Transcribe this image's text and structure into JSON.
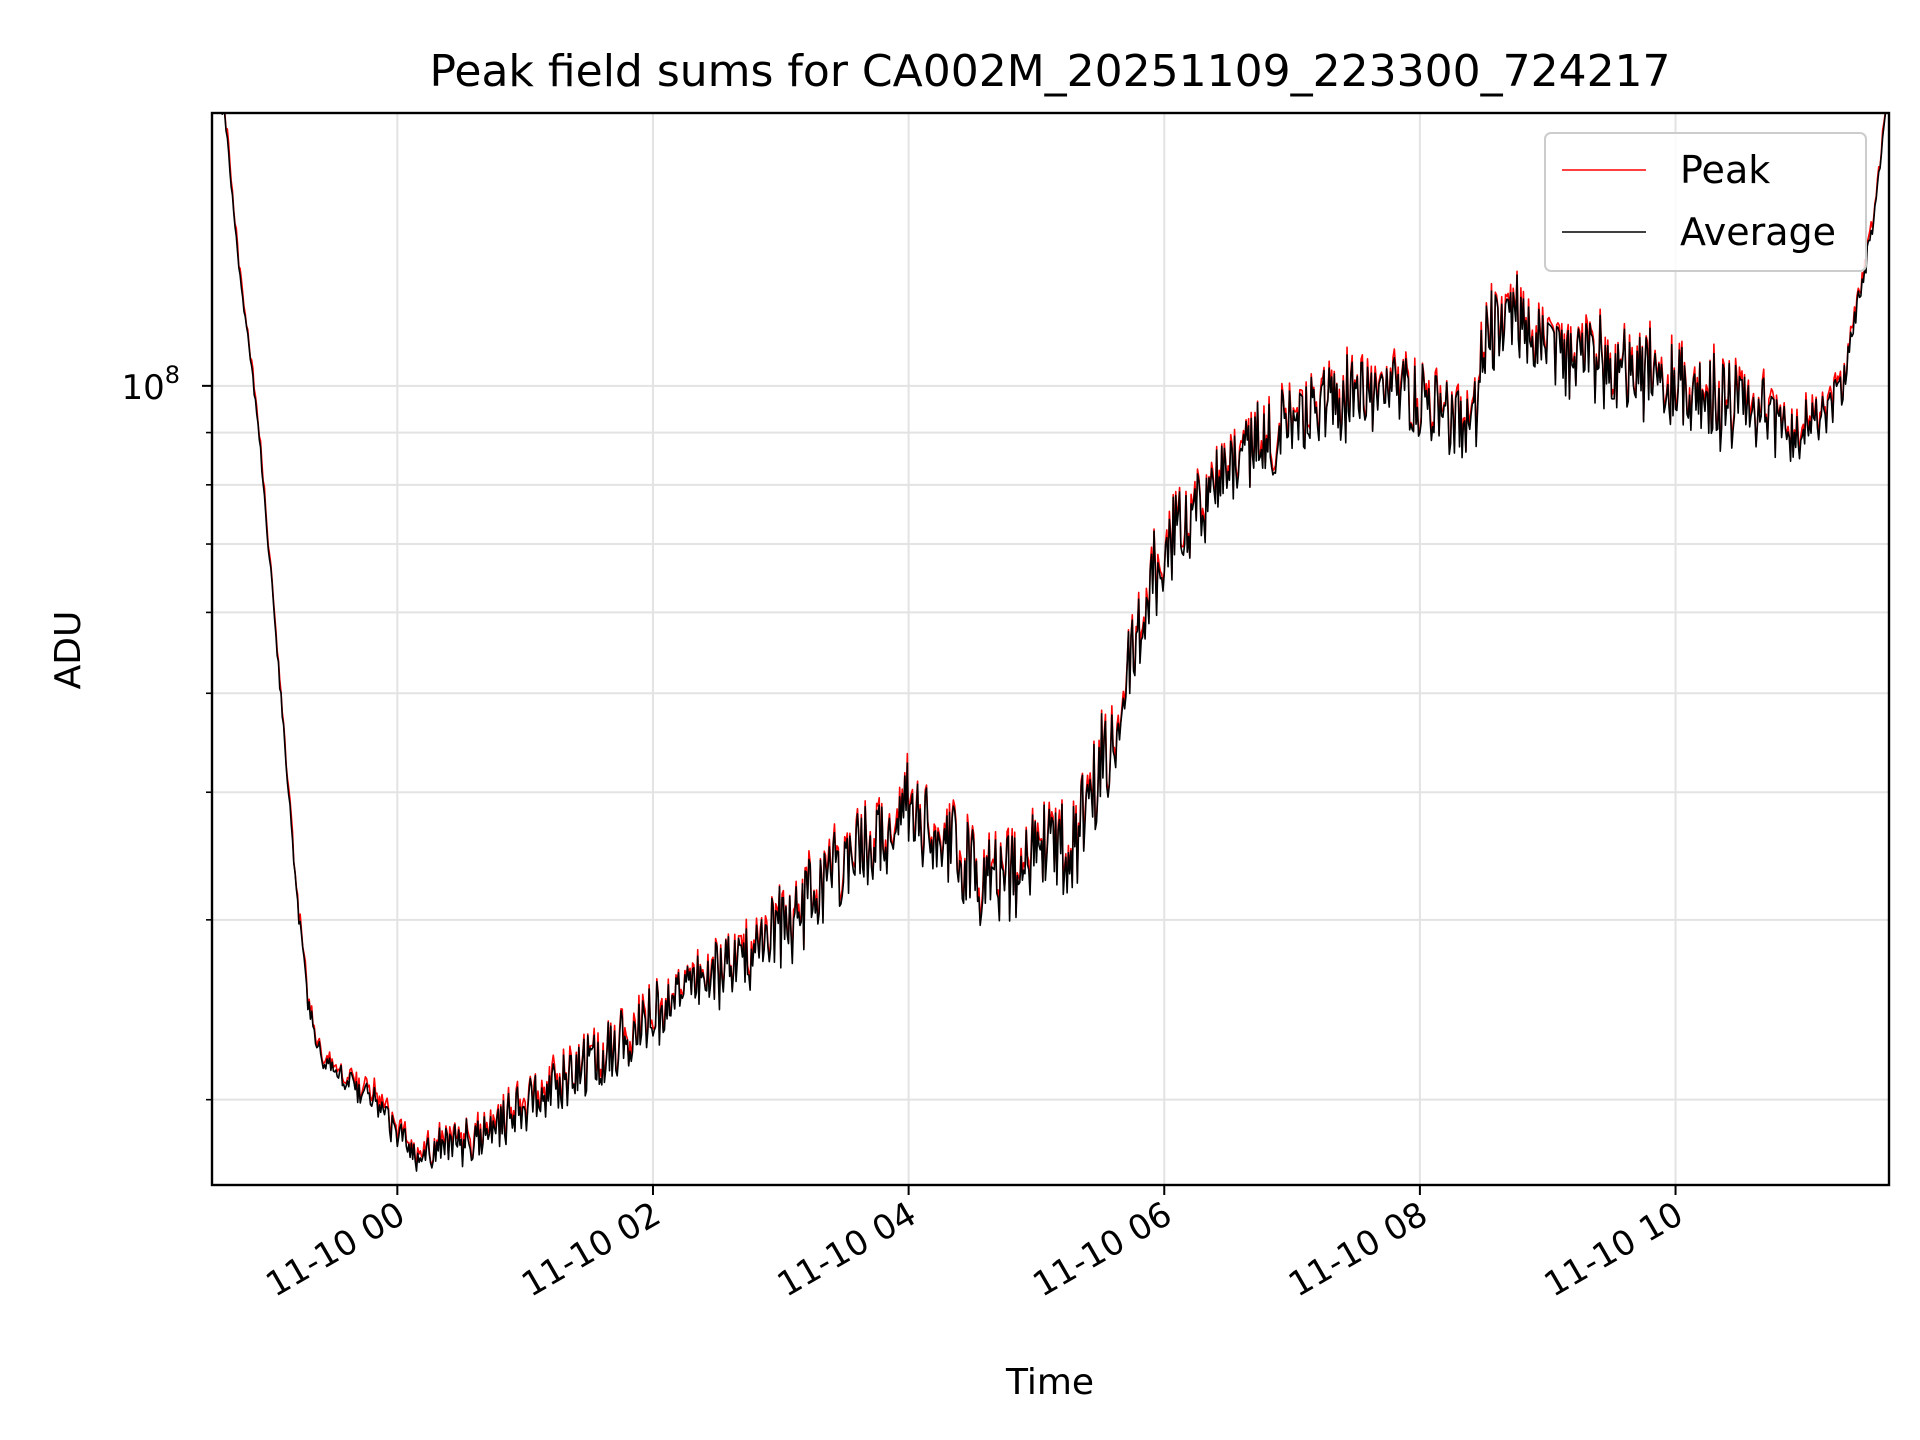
{
  "chart_data": {
    "type": "line",
    "title": "Peak field sums for CA002M_20251109_223300_724217",
    "xlabel": "Time",
    "ylabel": "ADU",
    "yscale": "log",
    "ylim": [
      16500000,
      185000000
    ],
    "ytick_major": {
      "value": 100000000,
      "label_base": "10",
      "label_exp": "8"
    },
    "yticks_minor": [
      20000000,
      30000000,
      40000000,
      50000000,
      60000000,
      70000000,
      80000000,
      90000000,
      200000000
    ],
    "xlim_hours": [
      -1.45,
      11.67
    ],
    "xticks": [
      {
        "hour": 0,
        "label": "11-10 00"
      },
      {
        "hour": 2,
        "label": "11-10 02"
      },
      {
        "hour": 4,
        "label": "11-10 04"
      },
      {
        "hour": 6,
        "label": "11-10 06"
      },
      {
        "hour": 8,
        "label": "11-10 08"
      },
      {
        "hour": 10,
        "label": "11-10 10"
      }
    ],
    "legend": {
      "placement": "top-right"
    },
    "series": [
      {
        "name": "Peak",
        "color": "#ff0000",
        "offset": 1.012
      },
      {
        "name": "Average",
        "color": "#000000",
        "offset": 1.0
      }
    ],
    "trend_points": [
      [
        -1.45,
        190000000
      ],
      [
        -1.35,
        185000000
      ],
      [
        -1.25,
        135000000
      ],
      [
        -1.1,
        95000000
      ],
      [
        -1.0,
        68000000
      ],
      [
        -0.9,
        48000000
      ],
      [
        -0.8,
        33000000
      ],
      [
        -0.7,
        25000000
      ],
      [
        -0.6,
        22000000
      ],
      [
        -0.4,
        21000000
      ],
      [
        -0.2,
        20000000
      ],
      [
        0.0,
        18500000
      ],
      [
        0.2,
        17500000
      ],
      [
        0.4,
        18000000
      ],
      [
        0.8,
        19000000
      ],
      [
        1.2,
        20500000
      ],
      [
        1.6,
        22000000
      ],
      [
        2.0,
        24000000
      ],
      [
        2.4,
        26000000
      ],
      [
        2.8,
        28000000
      ],
      [
        3.2,
        31000000
      ],
      [
        3.6,
        35000000
      ],
      [
        4.0,
        39000000
      ],
      [
        4.2,
        36000000
      ],
      [
        4.6,
        33000000
      ],
      [
        5.0,
        35000000
      ],
      [
        5.3,
        36000000
      ],
      [
        5.6,
        45000000
      ],
      [
        5.9,
        65000000
      ],
      [
        6.2,
        75000000
      ],
      [
        6.6,
        85000000
      ],
      [
        7.0,
        92000000
      ],
      [
        7.4,
        97000000
      ],
      [
        7.8,
        100000000
      ],
      [
        8.2,
        93000000
      ],
      [
        8.4,
        90000000
      ],
      [
        8.5,
        110000000
      ],
      [
        8.7,
        118000000
      ],
      [
        9.0,
        108000000
      ],
      [
        9.5,
        104000000
      ],
      [
        10.0,
        100000000
      ],
      [
        10.5,
        95000000
      ],
      [
        11.0,
        90000000
      ],
      [
        11.3,
        98000000
      ],
      [
        11.45,
        125000000
      ],
      [
        11.55,
        145000000
      ],
      [
        11.67,
        200000000
      ]
    ],
    "noise_amplitude": [
      [
        -1.45,
        0.01
      ],
      [
        -0.7,
        0.02
      ],
      [
        0.5,
        0.05
      ],
      [
        2.0,
        0.07
      ],
      [
        3.5,
        0.09
      ],
      [
        5.5,
        0.11
      ],
      [
        7.0,
        0.08
      ],
      [
        8.5,
        0.09
      ],
      [
        10.5,
        0.09
      ],
      [
        11.3,
        0.04
      ],
      [
        11.67,
        0.01
      ]
    ],
    "sample_step_hours": 0.01
  }
}
